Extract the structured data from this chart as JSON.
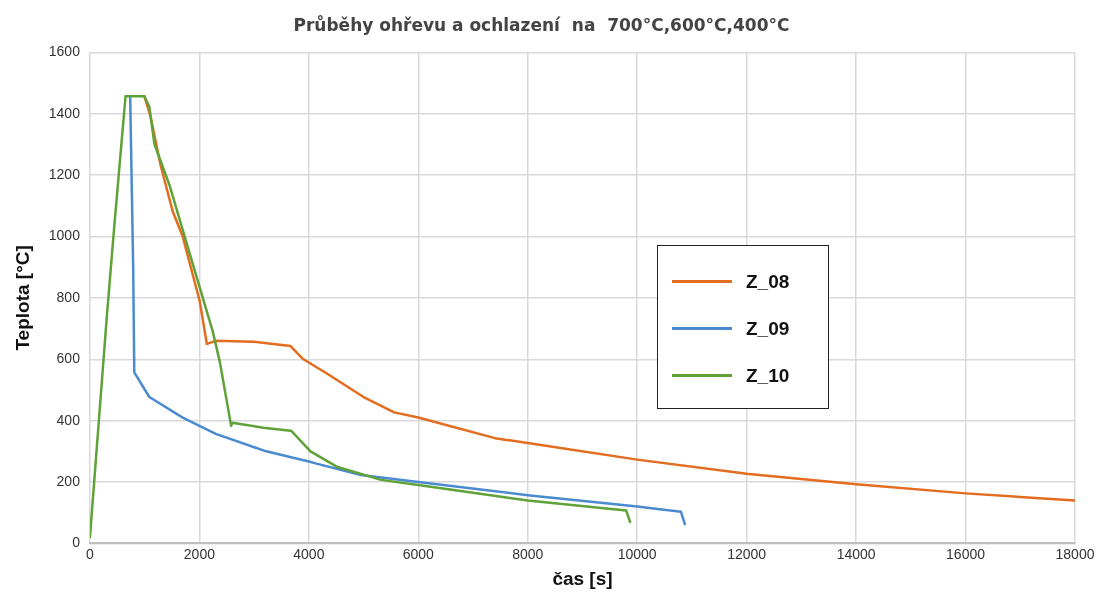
{
  "chart_data": {
    "type": "line",
    "title": "Průběhy ohřevu a ochlazení  na  700°C,600°C,400°C",
    "xlabel": "čas [s]",
    "ylabel": "Teplota [°C]",
    "xlim": [
      0,
      18000
    ],
    "xticks": [
      0,
      2000,
      4000,
      6000,
      8000,
      10000,
      12000,
      14000,
      16000,
      18000
    ],
    "ylim": [
      0,
      1600
    ],
    "yticks": [
      0,
      200,
      400,
      600,
      800,
      1000,
      1200,
      1400,
      1600
    ],
    "grid": true,
    "legend": "right",
    "marker": "none",
    "line_style": "solid",
    "series": [
      {
        "name": "Z_08",
        "color": "#e36c1e",
        "x": [
          995,
          1105,
          1290,
          1510,
          1695,
          2005,
          2136,
          2300,
          2985,
          3665,
          3900,
          4300,
          5000,
          5560,
          6000,
          7400,
          8000,
          10000,
          12000,
          14000,
          16000,
          18000
        ],
        "values": [
          1457,
          1393,
          1233,
          1083,
          1000,
          790,
          650,
          660,
          657,
          643,
          600,
          557,
          477,
          427,
          410,
          343,
          327,
          273,
          227,
          193,
          163,
          140
        ]
      },
      {
        "name": "Z_09",
        "color": "#4a8bd0",
        "x": [
          735,
          790,
          810,
          1085,
          1695,
          2300,
          3220,
          4000,
          4140,
          4950,
          6000,
          8000,
          10000,
          10800,
          10870
        ],
        "values": [
          1457,
          900,
          557,
          477,
          410,
          357,
          300,
          267,
          260,
          223,
          200,
          157,
          120,
          103,
          63
        ]
      },
      {
        "name": "Z_10",
        "color": "#5ea238",
        "x": [
          0,
          310,
          440,
          650,
          718,
          995,
          1085,
          1180,
          1455,
          1880,
          2245,
          2375,
          2580,
          2600,
          3170,
          3665,
          3680,
          4030,
          4510,
          5320,
          6000,
          8000,
          9800,
          9870
        ],
        "values": [
          20,
          743,
          1023,
          1457,
          1457,
          1457,
          1423,
          1300,
          1167,
          910,
          690,
          590,
          383,
          393,
          377,
          367,
          367,
          300,
          250,
          207,
          190,
          140,
          107,
          70
        ]
      }
    ]
  }
}
